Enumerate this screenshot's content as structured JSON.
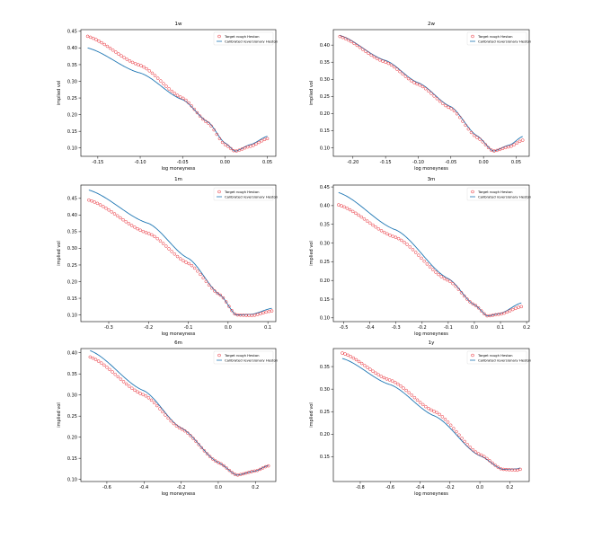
{
  "legend": {
    "target_label": "Target rough Heston",
    "model_label": "Calibrated reversionary Heston"
  },
  "colors": {
    "target": "#e8212b",
    "model": "#1f77b4"
  },
  "chart_data": [
    {
      "type": "line",
      "title": "1w",
      "xlabel": "log moneyness",
      "ylabel": "implied vol",
      "xlim": [
        -0.17,
        0.06
      ],
      "ylim": [
        0.075,
        0.455
      ],
      "xticks": [
        -0.15,
        -0.1,
        -0.05,
        0.0,
        0.05
      ],
      "xtick_labels": [
        "-0.15",
        "-0.10",
        "-0.05",
        "0.00",
        "0.05"
      ],
      "yticks": [
        0.1,
        0.15,
        0.2,
        0.25,
        0.3,
        0.35,
        0.4,
        0.45
      ],
      "ytick_labels": [
        "0.10",
        "0.15",
        "0.20",
        "0.25",
        "0.30",
        "0.35",
        "0.40",
        "0.45"
      ],
      "legend_position": "top-right",
      "x_range": [
        -0.162,
        0.05
      ],
      "n_markers": 65,
      "series": [
        {
          "name": "Target rough Heston",
          "style": "markers",
          "knots": [
            [
              -0.162,
              0.435
            ],
            [
              -0.1,
              0.348
            ],
            [
              -0.05,
              0.25
            ],
            [
              -0.02,
              0.175
            ],
            [
              0.0,
              0.11
            ],
            [
              0.012,
              0.09
            ],
            [
              0.03,
              0.105
            ],
            [
              0.05,
              0.128
            ]
          ]
        },
        {
          "name": "Calibrated reversionary Heston",
          "style": "line",
          "knots": [
            [
              -0.162,
              0.4
            ],
            [
              -0.1,
              0.325
            ],
            [
              -0.05,
              0.245
            ],
            [
              -0.02,
              0.178
            ],
            [
              0.0,
              0.115
            ],
            [
              0.012,
              0.09
            ],
            [
              0.03,
              0.11
            ],
            [
              0.05,
              0.135
            ]
          ]
        }
      ]
    },
    {
      "type": "line",
      "title": "2w",
      "xlabel": "log moneyness",
      "ylabel": "implied vol",
      "xlim": [
        -0.23,
        0.07
      ],
      "ylim": [
        0.075,
        0.445
      ],
      "xticks": [
        -0.2,
        -0.15,
        -0.1,
        -0.05,
        0.0,
        0.05
      ],
      "xtick_labels": [
        "-0.20",
        "-0.15",
        "-0.10",
        "-0.05",
        "0.00",
        "0.05"
      ],
      "yticks": [
        0.1,
        0.15,
        0.2,
        0.25,
        0.3,
        0.35,
        0.4
      ],
      "ytick_labels": [
        "0.10",
        "0.15",
        "0.20",
        "0.25",
        "0.30",
        "0.35",
        "0.40"
      ],
      "legend_position": "top-right",
      "x_range": [
        -0.22,
        0.06
      ],
      "n_markers": 65,
      "series": [
        {
          "name": "Target rough Heston",
          "style": "markers",
          "knots": [
            [
              -0.22,
              0.425
            ],
            [
              -0.15,
              0.35
            ],
            [
              -0.1,
              0.285
            ],
            [
              -0.05,
              0.215
            ],
            [
              -0.01,
              0.13
            ],
            [
              0.015,
              0.09
            ],
            [
              0.04,
              0.103
            ],
            [
              0.06,
              0.122
            ]
          ]
        },
        {
          "name": "Calibrated reversionary Heston",
          "style": "line",
          "knots": [
            [
              -0.22,
              0.428
            ],
            [
              -0.15,
              0.355
            ],
            [
              -0.1,
              0.29
            ],
            [
              -0.05,
              0.22
            ],
            [
              -0.01,
              0.135
            ],
            [
              0.015,
              0.09
            ],
            [
              0.04,
              0.108
            ],
            [
              0.06,
              0.133
            ]
          ]
        }
      ]
    },
    {
      "type": "line",
      "title": "1m",
      "xlabel": "log moneyness",
      "ylabel": "implied vol",
      "xlim": [
        -0.37,
        0.12
      ],
      "ylim": [
        0.08,
        0.49
      ],
      "xticks": [
        -0.3,
        -0.2,
        -0.1,
        0.0,
        0.1
      ],
      "xtick_labels": [
        "-0.3",
        "-0.2",
        "-0.1",
        "0.0",
        "0.1"
      ],
      "yticks": [
        0.1,
        0.15,
        0.2,
        0.25,
        0.3,
        0.35,
        0.4,
        0.45
      ],
      "ytick_labels": [
        "0.10",
        "0.15",
        "0.20",
        "0.25",
        "0.30",
        "0.35",
        "0.40",
        "0.45"
      ],
      "legend_position": "top-right",
      "x_range": [
        -0.35,
        0.11
      ],
      "n_markers": 65,
      "series": [
        {
          "name": "Target rough Heston",
          "style": "markers",
          "knots": [
            [
              -0.35,
              0.445
            ],
            [
              -0.2,
              0.345
            ],
            [
              -0.1,
              0.255
            ],
            [
              -0.02,
              0.16
            ],
            [
              0.02,
              0.1
            ],
            [
              0.06,
              0.098
            ],
            [
              0.11,
              0.112
            ]
          ]
        },
        {
          "name": "Calibrated reversionary Heston",
          "style": "line",
          "knots": [
            [
              -0.35,
              0.475
            ],
            [
              -0.2,
              0.375
            ],
            [
              -0.1,
              0.27
            ],
            [
              -0.02,
              0.16
            ],
            [
              0.02,
              0.1
            ],
            [
              0.06,
              0.102
            ],
            [
              0.11,
              0.12
            ]
          ]
        }
      ]
    },
    {
      "type": "line",
      "title": "3m",
      "xlabel": "log moneyness",
      "ylabel": "implied vol",
      "xlim": [
        -0.54,
        0.21
      ],
      "ylim": [
        0.09,
        0.455
      ],
      "xticks": [
        -0.5,
        -0.4,
        -0.3,
        -0.2,
        -0.1,
        0.0,
        0.1,
        0.2
      ],
      "xtick_labels": [
        "-0.5",
        "-0.4",
        "-0.3",
        "-0.2",
        "-0.1",
        "0.0",
        "0.1",
        "0.2"
      ],
      "yticks": [
        0.1,
        0.15,
        0.2,
        0.25,
        0.3,
        0.35,
        0.4,
        0.45
      ],
      "ytick_labels": [
        "0.10",
        "0.15",
        "0.20",
        "0.25",
        "0.30",
        "0.35",
        "0.40",
        "0.45"
      ],
      "legend_position": "top-right",
      "x_range": [
        -0.52,
        0.18
      ],
      "n_markers": 65,
      "series": [
        {
          "name": "Target rough Heston",
          "style": "markers",
          "knots": [
            [
              -0.52,
              0.402
            ],
            [
              -0.3,
              0.315
            ],
            [
              -0.1,
              0.2
            ],
            [
              0.0,
              0.135
            ],
            [
              0.05,
              0.105
            ],
            [
              0.1,
              0.11
            ],
            [
              0.18,
              0.13
            ]
          ]
        },
        {
          "name": "Calibrated reversionary Heston",
          "style": "line",
          "knots": [
            [
              -0.52,
              0.435
            ],
            [
              -0.3,
              0.335
            ],
            [
              -0.1,
              0.205
            ],
            [
              0.0,
              0.135
            ],
            [
              0.05,
              0.105
            ],
            [
              0.1,
              0.112
            ],
            [
              0.18,
              0.14
            ]
          ]
        }
      ]
    },
    {
      "type": "line",
      "title": "6m",
      "xlabel": "log moneyness",
      "ylabel": "implied vol",
      "xlim": [
        -0.74,
        0.31
      ],
      "ylim": [
        0.095,
        0.41
      ],
      "xticks": [
        -0.6,
        -0.4,
        -0.2,
        0.0,
        0.2
      ],
      "xtick_labels": [
        "-0.6",
        "-0.4",
        "-0.2",
        "0.0",
        "0.2"
      ],
      "yticks": [
        0.1,
        0.15,
        0.2,
        0.25,
        0.3,
        0.35,
        0.4
      ],
      "ytick_labels": [
        "0.10",
        "0.15",
        "0.20",
        "0.25",
        "0.30",
        "0.35",
        "0.40"
      ],
      "legend_position": "top-right",
      "x_range": [
        -0.69,
        0.27
      ],
      "n_markers": 65,
      "series": [
        {
          "name": "Target rough Heston",
          "style": "markers",
          "knots": [
            [
              -0.69,
              0.39
            ],
            [
              -0.4,
              0.3
            ],
            [
              -0.2,
              0.22
            ],
            [
              0.0,
              0.14
            ],
            [
              0.1,
              0.11
            ],
            [
              0.2,
              0.12
            ],
            [
              0.27,
              0.132
            ]
          ]
        },
        {
          "name": "Calibrated reversionary Heston",
          "style": "line",
          "knots": [
            [
              -0.69,
              0.405
            ],
            [
              -0.4,
              0.31
            ],
            [
              -0.2,
              0.222
            ],
            [
              0.0,
              0.14
            ],
            [
              0.1,
              0.11
            ],
            [
              0.2,
              0.12
            ],
            [
              0.27,
              0.133
            ]
          ]
        }
      ]
    },
    {
      "type": "line",
      "title": "1y",
      "xlabel": "log moneyness",
      "ylabel": "implied vol",
      "xlim": [
        -0.98,
        0.33
      ],
      "ylim": [
        0.095,
        0.39
      ],
      "xticks": [
        -0.8,
        -0.6,
        -0.4,
        -0.2,
        0.0,
        0.2
      ],
      "xtick_labels": [
        "-0.8",
        "-0.6",
        "-0.4",
        "-0.2",
        "0.0",
        "0.2"
      ],
      "yticks": [
        0.15,
        0.2,
        0.25,
        0.3,
        0.35
      ],
      "ytick_labels": [
        "0.15",
        "0.20",
        "0.25",
        "0.30",
        "0.35"
      ],
      "legend_position": "top-right",
      "x_range": [
        -0.92,
        0.27
      ],
      "n_markers": 65,
      "series": [
        {
          "name": "Target rough Heston",
          "style": "markers",
          "knots": [
            [
              -0.92,
              0.38
            ],
            [
              -0.6,
              0.32
            ],
            [
              -0.3,
              0.25
            ],
            [
              0.0,
              0.155
            ],
            [
              0.15,
              0.122
            ],
            [
              0.25,
              0.12
            ],
            [
              0.27,
              0.122
            ]
          ]
        },
        {
          "name": "Calibrated reversionary Heston",
          "style": "line",
          "knots": [
            [
              -0.92,
              0.368
            ],
            [
              -0.6,
              0.31
            ],
            [
              -0.3,
              0.24
            ],
            [
              0.0,
              0.152
            ],
            [
              0.15,
              0.122
            ],
            [
              0.25,
              0.123
            ],
            [
              0.27,
              0.125
            ]
          ]
        }
      ]
    }
  ]
}
